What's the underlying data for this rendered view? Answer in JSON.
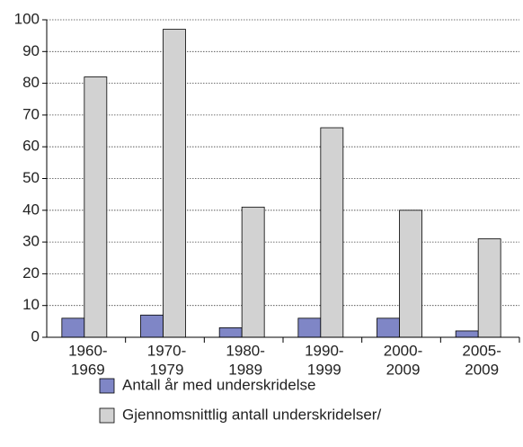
{
  "chart_data": {
    "type": "bar",
    "categories": [
      [
        "1960-",
        "1969"
      ],
      [
        "1970-",
        "1979"
      ],
      [
        "1980-",
        "1989"
      ],
      [
        "1990-",
        "1999"
      ],
      [
        "2000-",
        "2009"
      ],
      [
        "2005-",
        "2009"
      ]
    ],
    "series": [
      {
        "name": "Antall år med underskridelse",
        "color": "#7f86c6",
        "values": [
          6,
          7,
          3,
          6,
          6,
          2
        ]
      },
      {
        "name": "Gjennomsnittlig antall underskridelser/",
        "color": "#d2d2d2",
        "values": [
          82,
          97,
          41,
          66,
          40,
          31
        ]
      }
    ],
    "ylim": [
      0,
      100
    ],
    "yticks": [
      0,
      10,
      20,
      30,
      40,
      50,
      60,
      70,
      80,
      90,
      100
    ],
    "grid": true
  }
}
